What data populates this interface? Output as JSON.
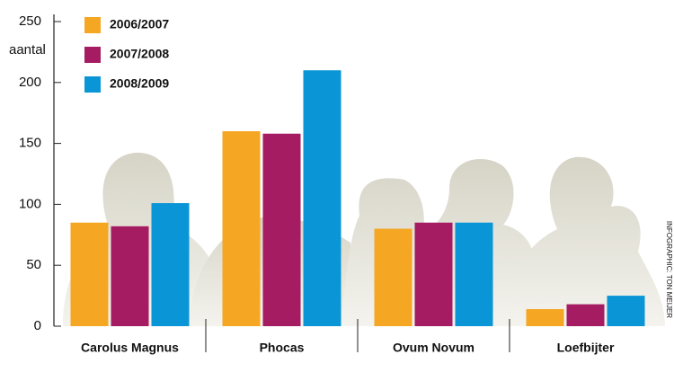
{
  "chart_data": {
    "type": "bar",
    "y_label": "aantal",
    "credit": "INFOGRAPHIC: TON MEIJER",
    "categories": [
      "Carolus Magnus",
      "Phocas",
      "Ovum Novum",
      "Loefbijter"
    ],
    "series": [
      {
        "name": "2006/2007",
        "color": "#f5a623",
        "values": [
          85,
          160,
          80,
          14
        ]
      },
      {
        "name": "2007/2008",
        "color": "#a51c63",
        "values": [
          82,
          158,
          85,
          18
        ]
      },
      {
        "name": "2008/2009",
        "color": "#0a96d6",
        "values": [
          101,
          210,
          85,
          25
        ]
      }
    ],
    "ylim": [
      0,
      250
    ],
    "yticks": [
      0,
      50,
      100,
      150,
      200,
      250
    ]
  }
}
